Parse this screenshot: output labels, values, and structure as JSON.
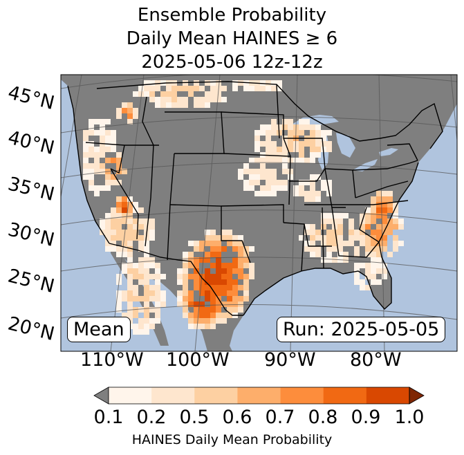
{
  "title": {
    "line1": "Ensemble Probability",
    "line2": "Daily Mean HAINES ≥ 6",
    "line3": "2025-05-06 12z-12z"
  },
  "map": {
    "latitude_labels": [
      "45°N",
      "40°N",
      "35°N",
      "30°N",
      "25°N",
      "20°N"
    ],
    "longitude_labels": [
      "110°W",
      "100°W",
      "90°W",
      "80°W"
    ],
    "mean_label": "Mean",
    "run_label": "Run: 2025-05-05",
    "colors": {
      "ocean": "#b0c4de",
      "no_data_land": "#7f7f7f",
      "borders": "#000000"
    }
  },
  "colorbar": {
    "label": "HAINES Daily Mean Probability",
    "ticks": [
      "0.1",
      "0.2",
      "0.5",
      "0.6",
      "0.7",
      "0.8",
      "0.9",
      "1.0"
    ],
    "under_color": "#7f7f7f",
    "over_color": "#7f2704",
    "bins": [
      {
        "from": 0.1,
        "to": 0.2,
        "color": "#fff5eb"
      },
      {
        "from": 0.2,
        "to": 0.5,
        "color": "#fee6ce"
      },
      {
        "from": 0.5,
        "to": 0.6,
        "color": "#fdd0a2"
      },
      {
        "from": 0.6,
        "to": 0.7,
        "color": "#fdae6b"
      },
      {
        "from": 0.7,
        "to": 0.8,
        "color": "#fd8d3c"
      },
      {
        "from": 0.8,
        "to": 0.9,
        "color": "#f16913"
      },
      {
        "from": 0.9,
        "to": 1.0,
        "color": "#d94801"
      }
    ]
  }
}
